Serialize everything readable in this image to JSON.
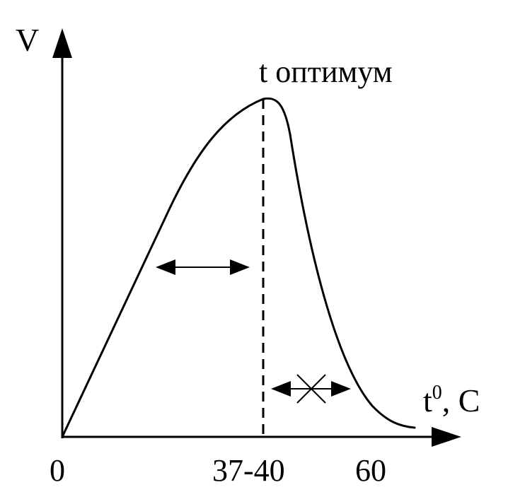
{
  "labels": {
    "y_axis": "V",
    "x_axis_t": "t",
    "x_axis_sup": "0",
    "x_axis_unit": ", C",
    "optimum": "t оптимум",
    "tick_0": "0",
    "tick_37_40": "37-40",
    "tick_60": "60"
  },
  "colors": {
    "stroke": "#000000",
    "background": "#ffffff"
  }
}
